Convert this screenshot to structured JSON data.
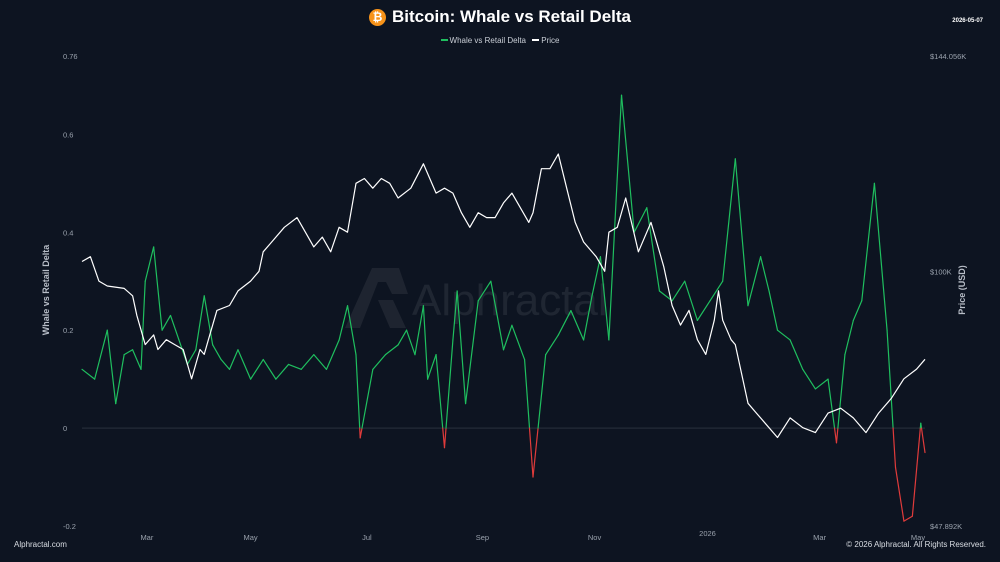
{
  "header": {
    "title": "Bitcoin: Whale vs Retail Delta",
    "date": "2026-05-07",
    "watermark": "Alphractal"
  },
  "footer": {
    "brand": "Alphractal.com",
    "copyright": "© 2026 Alphractal. All Rights Reserved."
  },
  "colors": {
    "background": "#0d1421",
    "positive": "#1fbf5f",
    "negative": "#e03b3b",
    "price": "#ffffff",
    "bitcoin": "#f7931a"
  },
  "chart_data": {
    "type": "line",
    "title": "Bitcoin: Whale vs Retail Delta",
    "ylabel": "Whale vs Retail Delta",
    "y2label": "Price (USD)",
    "legend_position": "top-center",
    "grid": false,
    "ylim": [
      -0.2,
      0.76
    ],
    "left_ticks": [
      "0.76",
      "0.6",
      "0.4",
      "0.2",
      "0",
      "-0.2"
    ],
    "left_tick_values": [
      0.76,
      0.6,
      0.4,
      0.2,
      0,
      -0.2
    ],
    "right_ticks": [
      "$144.056K",
      "$100K",
      "$47.892K"
    ],
    "right_tick_values": [
      144056,
      100000,
      47892
    ],
    "y2lim": [
      47892,
      144056
    ],
    "x_ticks": [
      "Mar",
      "May",
      "Jul",
      "Sep",
      "Nov",
      "2026",
      "Mar",
      "May"
    ],
    "x_tick_fractions": [
      0.077,
      0.2,
      0.338,
      0.475,
      0.608,
      0.742,
      0.875,
      1.0
    ],
    "series": [
      {
        "name": "Whale vs Retail Delta",
        "axis": "left",
        "x": [
          0,
          0.015,
          0.03,
          0.04,
          0.05,
          0.06,
          0.07,
          0.075,
          0.085,
          0.095,
          0.105,
          0.115,
          0.125,
          0.135,
          0.145,
          0.155,
          0.165,
          0.175,
          0.185,
          0.2,
          0.215,
          0.23,
          0.245,
          0.26,
          0.275,
          0.29,
          0.305,
          0.315,
          0.325,
          0.33,
          0.345,
          0.36,
          0.375,
          0.385,
          0.395,
          0.405,
          0.41,
          0.42,
          0.43,
          0.44,
          0.445,
          0.455,
          0.47,
          0.485,
          0.5,
          0.51,
          0.525,
          0.535,
          0.55,
          0.565,
          0.58,
          0.595,
          0.605,
          0.615,
          0.625,
          0.64,
          0.655,
          0.67,
          0.685,
          0.7,
          0.715,
          0.73,
          0.745,
          0.76,
          0.775,
          0.79,
          0.805,
          0.815,
          0.825,
          0.84,
          0.855,
          0.87,
          0.885,
          0.895,
          0.905,
          0.915,
          0.925,
          0.94,
          0.955,
          0.965,
          0.975,
          0.985,
          0.995,
          1.0
        ],
        "values": [
          0.12,
          0.1,
          0.2,
          0.05,
          0.15,
          0.16,
          0.12,
          0.3,
          0.37,
          0.2,
          0.23,
          0.18,
          0.13,
          0.16,
          0.27,
          0.17,
          0.14,
          0.12,
          0.16,
          0.1,
          0.14,
          0.1,
          0.13,
          0.12,
          0.15,
          0.12,
          0.18,
          0.25,
          0.15,
          -0.02,
          0.12,
          0.15,
          0.17,
          0.2,
          0.15,
          0.25,
          0.1,
          0.15,
          -0.04,
          0.18,
          0.28,
          0.05,
          0.26,
          0.3,
          0.16,
          0.21,
          0.14,
          -0.1,
          0.15,
          0.19,
          0.24,
          0.18,
          0.27,
          0.35,
          0.18,
          0.68,
          0.4,
          0.45,
          0.28,
          0.26,
          0.3,
          0.22,
          0.26,
          0.3,
          0.55,
          0.25,
          0.35,
          0.28,
          0.2,
          0.18,
          0.12,
          0.08,
          0.1,
          -0.03,
          0.15,
          0.22,
          0.26,
          0.5,
          0.2,
          -0.08,
          -0.19,
          -0.18,
          0.01,
          -0.05
        ]
      },
      {
        "name": "Price",
        "axis": "right",
        "x": [
          0,
          0.01,
          0.02,
          0.03,
          0.05,
          0.06,
          0.065,
          0.075,
          0.085,
          0.09,
          0.1,
          0.11,
          0.12,
          0.13,
          0.14,
          0.145,
          0.15,
          0.16,
          0.175,
          0.185,
          0.2,
          0.21,
          0.215,
          0.225,
          0.24,
          0.255,
          0.265,
          0.275,
          0.285,
          0.295,
          0.305,
          0.315,
          0.325,
          0.335,
          0.345,
          0.355,
          0.365,
          0.375,
          0.39,
          0.405,
          0.42,
          0.43,
          0.44,
          0.45,
          0.46,
          0.47,
          0.48,
          0.49,
          0.5,
          0.51,
          0.52,
          0.53,
          0.535,
          0.545,
          0.555,
          0.565,
          0.575,
          0.585,
          0.595,
          0.61,
          0.62,
          0.625,
          0.635,
          0.645,
          0.66,
          0.675,
          0.69,
          0.7,
          0.71,
          0.72,
          0.73,
          0.74,
          0.75,
          0.755,
          0.76,
          0.77,
          0.775,
          0.79,
          0.8,
          0.81,
          0.825,
          0.84,
          0.855,
          0.87,
          0.885,
          0.9,
          0.915,
          0.93,
          0.945,
          0.96,
          0.975,
          0.99,
          1.0
        ],
        "values": [
          102000,
          103000,
          98000,
          97000,
          96500,
          95000,
          91000,
          85000,
          87000,
          84000,
          86000,
          85000,
          84000,
          78000,
          84000,
          83000,
          86000,
          92000,
          93000,
          96000,
          98000,
          100000,
          104000,
          106000,
          109000,
          111000,
          108000,
          105000,
          107000,
          104000,
          109000,
          108000,
          118000,
          119000,
          117000,
          119000,
          118000,
          115000,
          117000,
          122000,
          116000,
          117000,
          116000,
          112000,
          109000,
          112000,
          111000,
          111000,
          114000,
          116000,
          113000,
          110000,
          112000,
          121000,
          121000,
          124000,
          117000,
          110000,
          106000,
          103000,
          100000,
          108000,
          109000,
          115000,
          104000,
          110000,
          101000,
          93000,
          89000,
          92000,
          86000,
          83000,
          90000,
          96000,
          90000,
          86000,
          85000,
          73000,
          71000,
          69000,
          66000,
          70000,
          68000,
          67000,
          71000,
          72000,
          70000,
          67000,
          71000,
          74000,
          78000,
          80000,
          82000
        ]
      }
    ]
  }
}
